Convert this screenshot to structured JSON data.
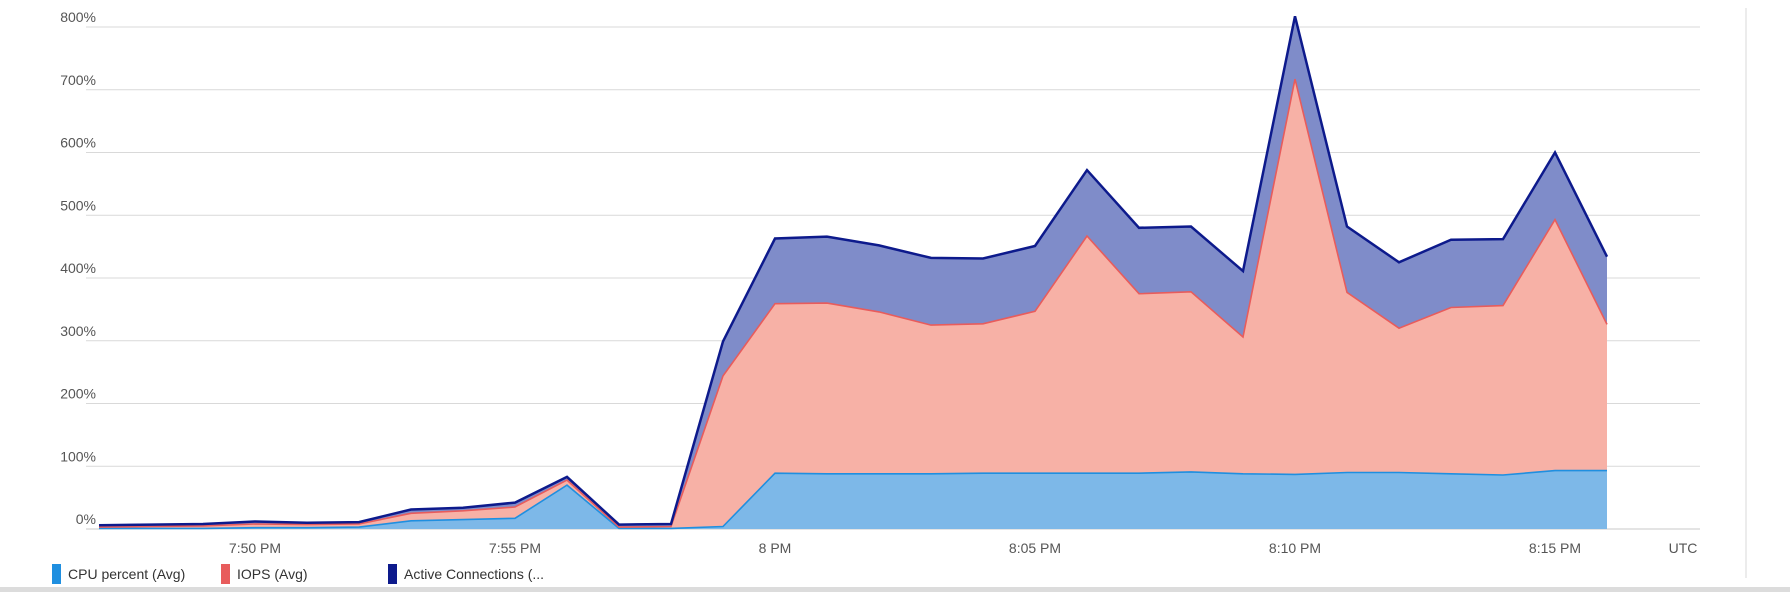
{
  "chart_data": {
    "type": "area",
    "stacked": true,
    "x": [
      "7:47 PM",
      "7:48 PM",
      "7:49 PM",
      "7:50 PM",
      "7:51 PM",
      "7:52 PM",
      "7:53 PM",
      "7:54 PM",
      "7:55 PM",
      "7:56 PM",
      "7:57 PM",
      "7:58 PM",
      "7:59 PM",
      "8:00 PM",
      "8:01 PM",
      "8:02 PM",
      "8:03 PM",
      "8:04 PM",
      "8:05 PM",
      "8:06 PM",
      "8:07 PM",
      "8:08 PM",
      "8:09 PM",
      "8:10 PM",
      "8:11 PM",
      "8:12 PM",
      "8:13 PM",
      "8:14 PM",
      "8:15 PM",
      "8:16 PM"
    ],
    "x_ticks": [
      "7:50 PM",
      "7:55 PM",
      "8 PM",
      "8:05 PM",
      "8:10 PM",
      "8:15 PM"
    ],
    "x_unit_label": "UTC",
    "y_ticks": [
      "0%",
      "100%",
      "200%",
      "300%",
      "400%",
      "500%",
      "600%",
      "700%",
      "800%"
    ],
    "ylim": [
      0,
      800
    ],
    "grid": true,
    "legend_position": "bottom-left",
    "series": [
      {
        "name": "CPU percent (Avg)",
        "color": "#1f8fe0",
        "fill": "#7db8e8",
        "values": [
          1,
          1,
          1,
          2,
          2,
          3,
          13,
          15,
          17,
          70,
          1,
          1,
          4,
          89,
          88,
          88,
          88,
          89,
          89,
          89,
          89,
          91,
          88,
          87,
          90,
          90,
          88,
          86,
          93,
          93
        ]
      },
      {
        "name": "IOPS (Avg)",
        "color": "#e85c5c",
        "fill": "#f7b1a6",
        "values": [
          2,
          3,
          4,
          6,
          5,
          5,
          12,
          14,
          18,
          8,
          2,
          3,
          240,
          270,
          272,
          258,
          237,
          238,
          258,
          378,
          286,
          287,
          218,
          630,
          287,
          230,
          265,
          270,
          400,
          233
        ]
      },
      {
        "name": "Active Connections (...",
        "color": "#0d1a8c",
        "fill": "#7f8cc9",
        "values": [
          3,
          3,
          3,
          4,
          3,
          3,
          6,
          5,
          7,
          5,
          4,
          4,
          55,
          104,
          106,
          106,
          107,
          104,
          104,
          105,
          105,
          104,
          105,
          100,
          105,
          105,
          108,
          106,
          107,
          108
        ]
      }
    ]
  }
}
